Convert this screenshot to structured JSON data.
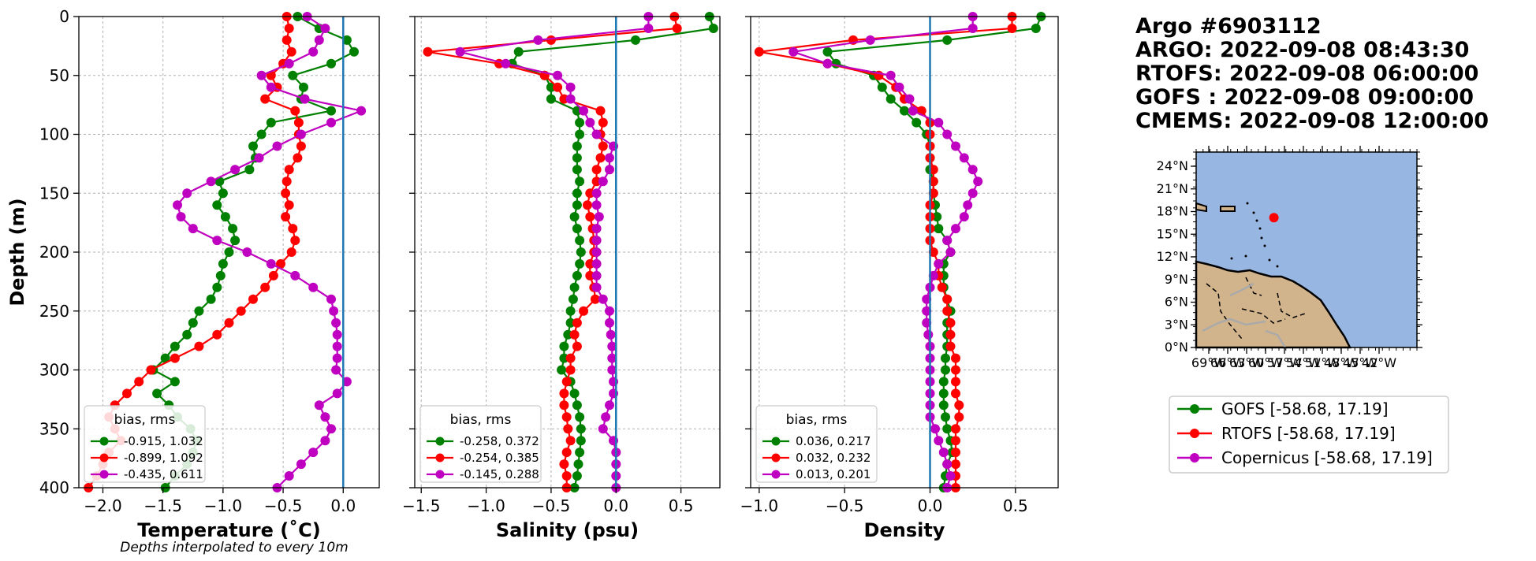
{
  "chart_data": [
    {
      "type": "line",
      "xlabel": "Temperature (˚C)",
      "ylabel": "Depth (m)",
      "note": "Depths interpolated to every 10m",
      "xlim": [
        -2.2,
        0.3
      ],
      "ylim": [
        400,
        0
      ],
      "xticks": [
        -2.0,
        -1.5,
        -1.0,
        -0.5,
        0.0
      ],
      "yticks": [
        0,
        50,
        100,
        150,
        200,
        250,
        300,
        350,
        400
      ],
      "grid": true,
      "zero_line": 0.0,
      "legend": {
        "title": "bias, rms",
        "placement": "lower-left"
      },
      "depths": [
        0,
        10,
        20,
        30,
        40,
        50,
        60,
        70,
        80,
        90,
        100,
        110,
        120,
        130,
        140,
        150,
        160,
        170,
        180,
        190,
        200,
        210,
        220,
        230,
        240,
        250,
        260,
        270,
        280,
        290,
        300,
        310,
        320,
        330,
        340,
        350,
        360,
        370,
        380,
        390,
        400
      ],
      "series": [
        {
          "name": "-0.915, 1.032",
          "color": "#008000",
          "values": [
            -0.38,
            -0.2,
            0.03,
            0.09,
            -0.1,
            -0.42,
            -0.33,
            -0.35,
            -0.1,
            -0.6,
            -0.68,
            -0.75,
            -0.73,
            -0.78,
            -1.03,
            -1.0,
            -1.05,
            -0.98,
            -0.92,
            -0.9,
            -0.95,
            -1.0,
            -1.02,
            -1.05,
            -1.1,
            -1.2,
            -1.25,
            -1.3,
            -1.4,
            -1.48,
            -1.58,
            -1.4,
            -1.55,
            -1.45,
            -1.38,
            -1.27,
            -1.22,
            -1.25,
            -1.3,
            -1.4,
            -1.48
          ]
        },
        {
          "name": "-0.899, 1.092",
          "color": "#ff0000",
          "values": [
            -0.47,
            -0.45,
            -0.47,
            -0.43,
            -0.5,
            -0.6,
            -0.55,
            -0.65,
            -0.4,
            -0.37,
            -0.37,
            -0.35,
            -0.38,
            -0.45,
            -0.47,
            -0.48,
            -0.45,
            -0.48,
            -0.42,
            -0.4,
            -0.43,
            -0.52,
            -0.58,
            -0.65,
            -0.75,
            -0.85,
            -0.95,
            -1.05,
            -1.2,
            -1.4,
            -1.6,
            -1.7,
            -1.8,
            -1.9,
            -1.95,
            -1.9,
            -1.85,
            -1.95,
            -2.0,
            -2.05,
            -2.12
          ]
        },
        {
          "name": "-0.435, 0.611",
          "color": "#c000c0",
          "values": [
            -0.3,
            -0.15,
            -0.2,
            -0.25,
            -0.45,
            -0.68,
            -0.6,
            -0.32,
            0.15,
            -0.1,
            -0.35,
            -0.55,
            -0.7,
            -0.9,
            -1.1,
            -1.3,
            -1.38,
            -1.35,
            -1.25,
            -1.05,
            -0.8,
            -0.6,
            -0.4,
            -0.25,
            -0.1,
            -0.08,
            -0.06,
            -0.05,
            -0.05,
            -0.05,
            -0.06,
            0.03,
            -0.05,
            -0.2,
            -0.15,
            -0.1,
            -0.15,
            -0.25,
            -0.35,
            -0.45,
            -0.55
          ]
        }
      ]
    },
    {
      "type": "line",
      "xlabel": "Salinity (psu)",
      "xlim": [
        -1.55,
        0.8
      ],
      "ylim": [
        400,
        0
      ],
      "xticks": [
        -1.5,
        -1.0,
        -0.5,
        0.0,
        0.5
      ],
      "yticks": [
        0,
        50,
        100,
        150,
        200,
        250,
        300,
        350,
        400
      ],
      "grid": true,
      "zero_line": 0.0,
      "legend": {
        "title": "bias, rms",
        "placement": "lower-left"
      },
      "depths": [
        0,
        10,
        20,
        30,
        40,
        50,
        60,
        70,
        80,
        90,
        100,
        110,
        120,
        130,
        140,
        150,
        160,
        170,
        180,
        190,
        200,
        210,
        220,
        230,
        240,
        250,
        260,
        270,
        280,
        290,
        300,
        310,
        320,
        330,
        340,
        350,
        360,
        370,
        380,
        390,
        400
      ],
      "series": [
        {
          "name": "-0.258, 0.372",
          "color": "#008000",
          "values": [
            0.72,
            0.75,
            0.15,
            -0.75,
            -0.8,
            -0.55,
            -0.5,
            -0.5,
            -0.3,
            -0.28,
            -0.28,
            -0.3,
            -0.3,
            -0.3,
            -0.28,
            -0.3,
            -0.3,
            -0.32,
            -0.3,
            -0.28,
            -0.27,
            -0.28,
            -0.3,
            -0.32,
            -0.33,
            -0.35,
            -0.35,
            -0.37,
            -0.4,
            -0.4,
            -0.42,
            -0.35,
            -0.32,
            -0.3,
            -0.28,
            -0.27,
            -0.27,
            -0.28,
            -0.29,
            -0.3,
            -0.32
          ]
        },
        {
          "name": "-0.254, 0.385",
          "color": "#ff0000",
          "values": [
            0.45,
            0.47,
            -0.5,
            -1.45,
            -0.9,
            -0.55,
            -0.45,
            -0.4,
            -0.12,
            -0.1,
            -0.12,
            -0.1,
            -0.12,
            -0.15,
            -0.15,
            -0.2,
            -0.22,
            -0.2,
            -0.18,
            -0.17,
            -0.17,
            -0.2,
            -0.2,
            -0.17,
            -0.16,
            -0.25,
            -0.3,
            -0.32,
            -0.3,
            -0.35,
            -0.35,
            -0.38,
            -0.4,
            -0.4,
            -0.38,
            -0.37,
            -0.35,
            -0.38,
            -0.4,
            -0.38,
            -0.38
          ]
        },
        {
          "name": "-0.145, 0.288",
          "color": "#c000c0",
          "values": [
            0.25,
            0.25,
            -0.6,
            -1.2,
            -0.85,
            -0.45,
            -0.35,
            -0.35,
            -0.25,
            -0.2,
            -0.15,
            -0.02,
            -0.05,
            -0.05,
            -0.1,
            -0.15,
            -0.15,
            -0.13,
            -0.15,
            -0.15,
            -0.15,
            -0.15,
            -0.15,
            -0.15,
            -0.1,
            -0.05,
            -0.05,
            -0.04,
            -0.03,
            -0.03,
            -0.03,
            -0.02,
            -0.02,
            -0.05,
            -0.08,
            -0.1,
            -0.02,
            0.0,
            0.0,
            0.0,
            0.0
          ]
        }
      ]
    },
    {
      "type": "line",
      "xlabel": "Density",
      "xlim": [
        -1.05,
        0.75
      ],
      "ylim": [
        400,
        0
      ],
      "xticks": [
        -1.0,
        -0.5,
        0.0,
        0.5
      ],
      "yticks": [
        0,
        50,
        100,
        150,
        200,
        250,
        300,
        350,
        400
      ],
      "grid": true,
      "zero_line": 0.0,
      "legend": {
        "title": "bias, rms",
        "placement": "lower-left"
      },
      "depths": [
        0,
        10,
        20,
        30,
        40,
        50,
        60,
        70,
        80,
        90,
        100,
        110,
        120,
        130,
        140,
        150,
        160,
        170,
        180,
        190,
        200,
        210,
        220,
        230,
        240,
        250,
        260,
        270,
        280,
        290,
        300,
        310,
        320,
        330,
        340,
        350,
        360,
        370,
        380,
        390,
        400
      ],
      "series": [
        {
          "name": "0.036, 0.217",
          "color": "#008000",
          "values": [
            0.65,
            0.62,
            0.1,
            -0.6,
            -0.55,
            -0.33,
            -0.28,
            -0.23,
            -0.15,
            -0.08,
            -0.02,
            0.0,
            0.0,
            0.0,
            0.02,
            0.02,
            0.03,
            0.04,
            0.05,
            0.1,
            0.12,
            0.08,
            0.08,
            0.08,
            0.1,
            0.12,
            0.1,
            0.1,
            0.1,
            0.09,
            0.09,
            0.08,
            0.08,
            0.08,
            0.09,
            0.1,
            0.12,
            0.13,
            0.1,
            0.09,
            0.08
          ]
        },
        {
          "name": "0.032, 0.232",
          "color": "#ff0000",
          "values": [
            0.48,
            0.48,
            -0.45,
            -1.0,
            -0.6,
            -0.3,
            -0.2,
            -0.15,
            -0.05,
            0.0,
            0.0,
            0.0,
            0.0,
            0.02,
            0.02,
            0.02,
            0.0,
            0.0,
            0.0,
            0.0,
            0.02,
            0.05,
            0.05,
            0.07,
            0.1,
            0.1,
            0.12,
            0.12,
            0.12,
            0.15,
            0.15,
            0.15,
            0.15,
            0.17,
            0.17,
            0.15,
            0.15,
            0.15,
            0.15,
            0.15,
            0.15
          ]
        },
        {
          "name": "0.013, 0.201",
          "color": "#c000c0",
          "values": [
            0.25,
            0.25,
            -0.35,
            -0.8,
            -0.6,
            -0.23,
            -0.18,
            -0.12,
            -0.1,
            0.05,
            0.1,
            0.15,
            0.2,
            0.25,
            0.28,
            0.25,
            0.22,
            0.2,
            0.15,
            0.1,
            0.12,
            0.05,
            0.02,
            0.0,
            -0.02,
            -0.02,
            -0.02,
            -0.01,
            0.0,
            0.0,
            0.0,
            0.0,
            0.0,
            0.0,
            0.0,
            0.03,
            0.05,
            0.08,
            0.1,
            0.12,
            0.1
          ]
        }
      ]
    }
  ],
  "info": {
    "lines": [
      "Argo #6903112",
      "ARGO:  2022-09-08 08:43:30",
      "RTOFS: 2022-09-08 06:00:00",
      "GOFS : 2022-09-08 09:00:00",
      "CMEMS: 2022-09-08 12:00:00"
    ]
  },
  "map": {
    "lat_labels": [
      "24°N",
      "21°N",
      "18°N",
      "15°N",
      "12°N",
      "9°N",
      "6°N",
      "3°N",
      "0°N"
    ],
    "lon_labels": [
      "69°W",
      "66°W",
      "63°W",
      "60°W",
      "57°W",
      "54°W",
      "51°W",
      "48°W",
      "45°W",
      "42°W"
    ],
    "float_lon": -58.68,
    "float_lat": 17.19,
    "float_color": "#ff0000",
    "ocean_color": "#97b6e2",
    "land_color": "#d2b48c"
  },
  "model_legend": [
    {
      "label": "GOFS [-58.68, 17.19]",
      "color": "#008000"
    },
    {
      "label": "RTOFS [-58.68, 17.19]",
      "color": "#ff0000"
    },
    {
      "label": "Copernicus [-58.68, 17.19]",
      "color": "#c000c0"
    }
  ]
}
